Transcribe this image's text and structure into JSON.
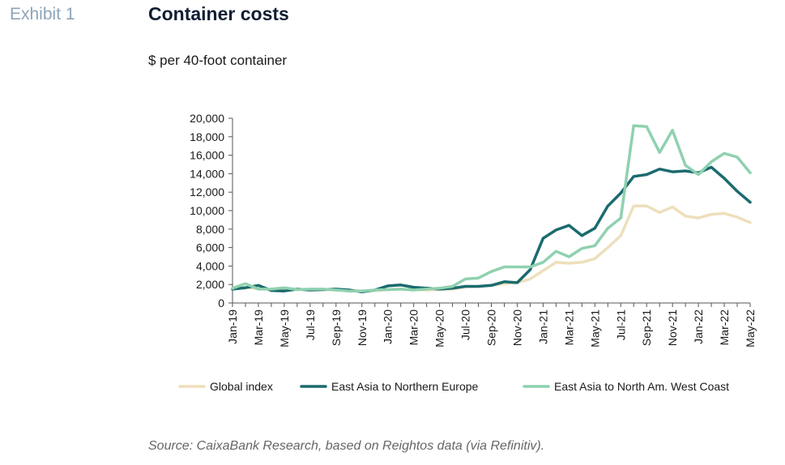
{
  "header": {
    "exhibit": "Exhibit 1",
    "title": "Container costs",
    "subtitle": "$ per 40-foot container"
  },
  "footer": {
    "source": "Source: CaixaBank Research, based on Reightos data (via Refinitiv)."
  },
  "colors": {
    "global": "#eedfbc",
    "northern_europe": "#1b6b6e",
    "north_am": "#8fd1b0",
    "axis": "#555555"
  },
  "chart_data": {
    "type": "line",
    "title": "Container costs",
    "ylabel": "",
    "xlabel": "",
    "ylim": [
      0,
      20000
    ],
    "yticks": [
      0,
      2000,
      4000,
      6000,
      8000,
      10000,
      12000,
      14000,
      16000,
      18000,
      20000
    ],
    "ytick_labels": [
      "0",
      "2,000",
      "4,000",
      "6,000",
      "8,000",
      "10,000",
      "12,000",
      "14,000",
      "16,000",
      "18,000",
      "20,000"
    ],
    "grid": false,
    "legend_position": "bottom",
    "x": [
      "Jan-19",
      "Feb-19",
      "Mar-19",
      "Apr-19",
      "May-19",
      "Jun-19",
      "Jul-19",
      "Aug-19",
      "Sep-19",
      "Oct-19",
      "Nov-19",
      "Dec-19",
      "Jan-20",
      "Feb-20",
      "Mar-20",
      "Apr-20",
      "May-20",
      "Jun-20",
      "Jul-20",
      "Aug-20",
      "Sep-20",
      "Oct-20",
      "Nov-20",
      "Dec-20",
      "Jan-21",
      "Feb-21",
      "Mar-21",
      "Apr-21",
      "May-21",
      "Jun-21",
      "Jul-21",
      "Aug-21",
      "Sep-21",
      "Oct-21",
      "Nov-21",
      "Dec-21",
      "Jan-22",
      "Feb-22",
      "Mar-22",
      "Apr-22",
      "May-22"
    ],
    "xtick_labels": [
      "Jan-19",
      "",
      "Mar-19",
      "",
      "May-19",
      "",
      "Jul-19",
      "",
      "Sep-19",
      "",
      "Nov-19",
      "",
      "Jan-20",
      "",
      "Mar-20",
      "",
      "May-20",
      "",
      "Jul-20",
      "",
      "Sep-20",
      "",
      "Nov-20",
      "",
      "Jan-21",
      "",
      "Mar-21",
      "",
      "May-21",
      "",
      "Jul-21",
      "",
      "Sep-21",
      "",
      "Nov-21",
      "",
      "Jan-22",
      "",
      "Mar-22",
      "",
      "May-22"
    ],
    "series": [
      {
        "name": "Global index",
        "color": "#eedfbc",
        "values": [
          1500,
          1700,
          1550,
          1450,
          1400,
          1450,
          1450,
          1450,
          1400,
          1400,
          1300,
          1350,
          1450,
          1500,
          1450,
          1400,
          1450,
          1500,
          1750,
          1800,
          1900,
          2100,
          2200,
          2600,
          3500,
          4400,
          4300,
          4400,
          4800,
          6000,
          7300,
          10500,
          10500,
          9800,
          10400,
          9400,
          9200,
          9600,
          9700,
          9300,
          8700
        ]
      },
      {
        "name": "East Asia to Northern Europe",
        "color": "#1b6b6e",
        "values": [
          1500,
          1650,
          1900,
          1350,
          1300,
          1500,
          1400,
          1450,
          1500,
          1400,
          1200,
          1400,
          1850,
          1950,
          1700,
          1600,
          1500,
          1600,
          1800,
          1800,
          1900,
          2300,
          2200,
          3600,
          7000,
          7900,
          8400,
          7300,
          8100,
          10500,
          11900,
          13700,
          13900,
          14500,
          14200,
          14300,
          14100,
          14700,
          13500,
          12100,
          10900
        ]
      },
      {
        "name": "East Asia to North Am. West Coast",
        "color": "#8fd1b0",
        "values": [
          1600,
          2100,
          1500,
          1500,
          1650,
          1450,
          1500,
          1500,
          1400,
          1300,
          1300,
          1400,
          1450,
          1500,
          1400,
          1500,
          1600,
          1800,
          2600,
          2700,
          3400,
          3900,
          3900,
          3900,
          4400,
          5600,
          5000,
          5900,
          6200,
          8100,
          9200,
          19200,
          19100,
          16300,
          18700,
          14900,
          13900,
          15300,
          16200,
          15800,
          14100
        ]
      }
    ]
  }
}
